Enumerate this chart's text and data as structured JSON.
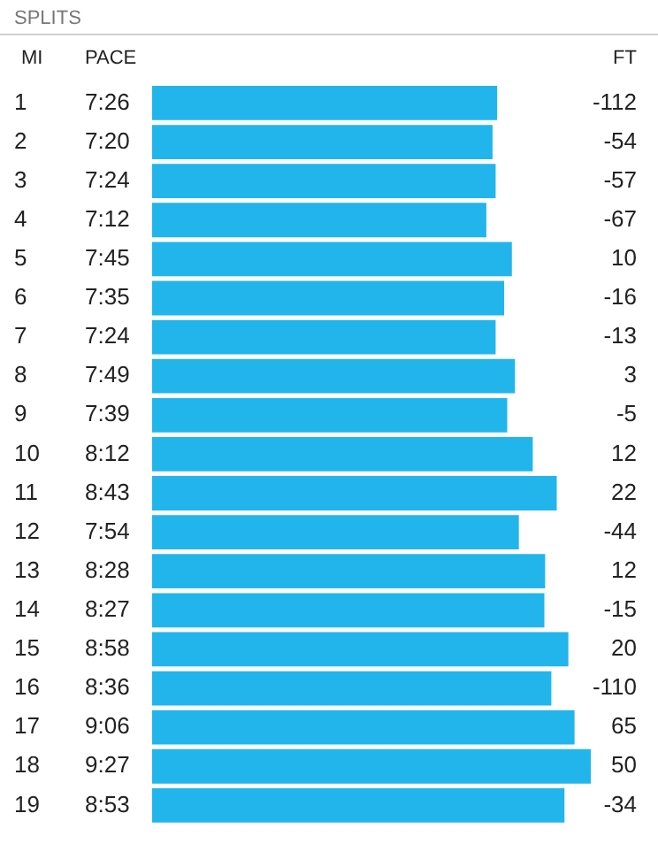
{
  "chart_data": {
    "type": "bar",
    "orientation": "horizontal",
    "title": "SPLITS",
    "ylabel": "MI",
    "color": "#22b5eb",
    "categories": [
      "1",
      "2",
      "3",
      "4",
      "5",
      "6",
      "7",
      "8",
      "9",
      "10",
      "11",
      "12",
      "13",
      "14",
      "15",
      "16",
      "17",
      "18",
      "19"
    ],
    "values": [
      7.4333,
      7.3333,
      7.4,
      7.2,
      7.75,
      7.5833,
      7.4,
      7.8167,
      7.65,
      8.2,
      8.7167,
      7.9,
      8.4667,
      8.45,
      8.9667,
      8.6,
      9.1,
      9.45,
      8.8833
    ],
    "value_labels": [
      "7:26",
      "7:20",
      "7:24",
      "7:12",
      "7:45",
      "7:35",
      "7:24",
      "7:49",
      "7:39",
      "8:12",
      "8:43",
      "7:54",
      "8:28",
      "8:27",
      "8:58",
      "8:36",
      "9:06",
      "9:27",
      "8:53"
    ],
    "tick_labels": "y",
    "annotations": [
      "PACE",
      "FT",
      "-112",
      "-54",
      "-57",
      "-67",
      "10",
      "-16",
      "-13",
      "3",
      "-5",
      "12",
      "22",
      "-44",
      "12",
      "-15",
      "20",
      "-110",
      "65",
      "50",
      "-34"
    ],
    "grid": false,
    "legend": false
  }
}
